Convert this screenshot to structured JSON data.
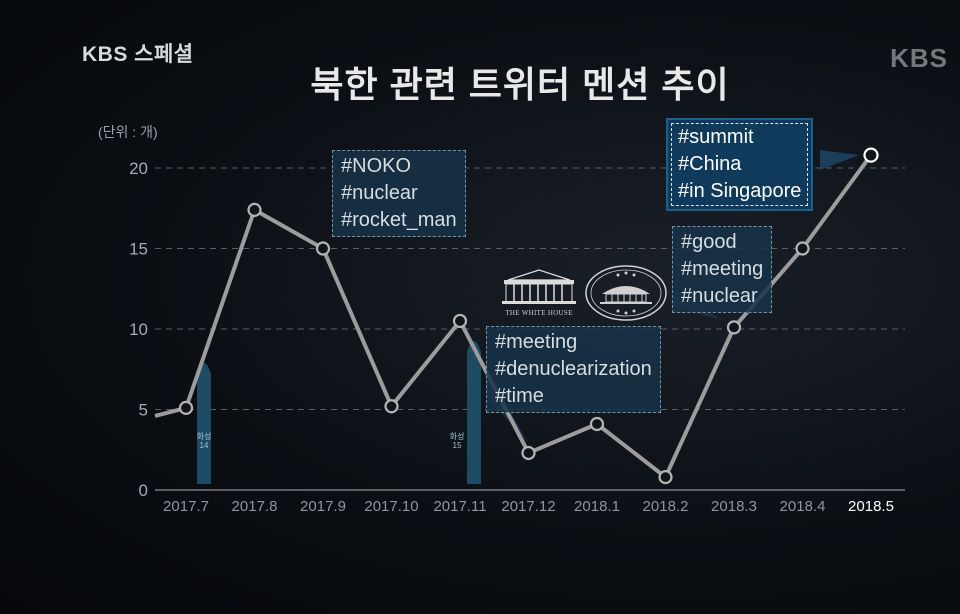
{
  "header": {
    "brand_left": "KBS 스페셜",
    "brand_right": "KBS",
    "title": "북한 관련 트위터 멘션 추이"
  },
  "colors": {
    "line": "#9c9c9c",
    "grid": "#5b6066",
    "box_fill": "#173248",
    "missile": "#1e4a63"
  },
  "chart_data": {
    "type": "line",
    "title": "북한 관련 트위터 멘션 추이",
    "ylabel": "(단위 : 개)",
    "xlabel": "",
    "categories": [
      "2017.7",
      "2017.8",
      "2017.9",
      "2017.10",
      "2017.11",
      "2017.12",
      "2018.1",
      "2018.2",
      "2018.3",
      "2018.4",
      "2018.5"
    ],
    "series": [
      {
        "values": [
          5.1,
          17.4,
          15.0,
          5.2,
          10.5,
          2.3,
          4.1,
          0.8,
          10.1,
          15.0,
          20.8
        ]
      }
    ],
    "y_ticks": [
      0,
      5,
      10,
      15,
      20
    ],
    "ylim": [
      0,
      21
    ],
    "grid": "horizontal dashed",
    "highlighted_category": "2018.5",
    "annotations": [
      {
        "lines": [
          "#NOKO",
          "#nuclear",
          "#rocket_man"
        ]
      },
      {
        "lines": [
          "#meeting",
          "#denuclearization",
          "#time"
        ]
      },
      {
        "lines": [
          "#good",
          "#meeting",
          "#nuclear"
        ]
      },
      {
        "lines": [
          "#summit",
          "#China",
          "#in Singapore"
        ]
      }
    ],
    "missile_labels": [
      {
        "line1": "화성",
        "line2": "14"
      },
      {
        "line1": "화성",
        "line2": "15"
      }
    ],
    "logo_caption": "THE WHITE HOUSE"
  }
}
